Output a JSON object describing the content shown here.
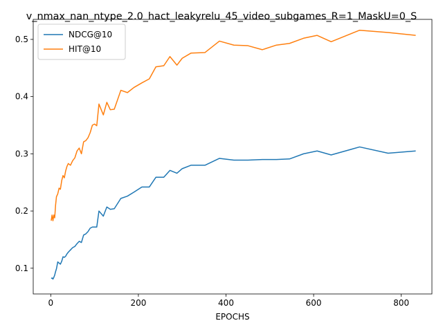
{
  "chart_data": {
    "type": "line",
    "title": "v_nmax_nan_ntype_2.0_hact_leakyrelu_45_video_subgames_R=1_MaskU=0_S",
    "xlabel": "EPOCHS",
    "ylabel": "",
    "xlim": [
      -40,
      870
    ],
    "ylim": [
      0.055,
      0.535
    ],
    "xticks": [
      0,
      200,
      400,
      600,
      800
    ],
    "yticks": [
      0.1,
      0.2,
      0.3,
      0.4,
      0.5
    ],
    "legend_position": "upper-left",
    "grid": false,
    "series": [
      {
        "name": "NDCG@10",
        "color": "#1f77b4",
        "x": [
          1,
          3,
          5,
          7,
          9,
          11,
          13,
          16,
          19,
          22,
          25,
          28,
          31,
          34,
          37,
          40,
          45,
          50,
          55,
          60,
          65,
          70,
          75,
          80,
          85,
          90,
          95,
          100,
          105,
          110,
          120,
          128,
          136,
          145,
          160,
          175,
          190,
          208,
          225,
          240,
          258,
          272,
          288,
          300,
          320,
          352,
          385,
          418,
          450,
          483,
          515,
          545,
          577,
          608,
          640,
          705,
          770,
          833
        ],
        "y": [
          0.082,
          0.083,
          0.081,
          0.084,
          0.088,
          0.094,
          0.099,
          0.111,
          0.109,
          0.107,
          0.112,
          0.12,
          0.119,
          0.121,
          0.125,
          0.128,
          0.132,
          0.136,
          0.138,
          0.143,
          0.147,
          0.145,
          0.158,
          0.16,
          0.164,
          0.17,
          0.172,
          0.172,
          0.172,
          0.2,
          0.191,
          0.207,
          0.203,
          0.204,
          0.222,
          0.226,
          0.233,
          0.242,
          0.242,
          0.259,
          0.259,
          0.271,
          0.266,
          0.274,
          0.28,
          0.28,
          0.292,
          0.289,
          0.289,
          0.29,
          0.29,
          0.291,
          0.3,
          0.305,
          0.298,
          0.312,
          0.301,
          0.305
        ]
      },
      {
        "name": "HIT@10",
        "color": "#ff7f0e",
        "x": [
          1,
          3,
          5,
          7,
          9,
          11,
          13,
          16,
          19,
          22,
          25,
          28,
          31,
          34,
          37,
          40,
          45,
          50,
          55,
          60,
          65,
          70,
          75,
          80,
          85,
          90,
          95,
          100,
          105,
          110,
          120,
          128,
          136,
          145,
          160,
          175,
          190,
          208,
          225,
          240,
          258,
          272,
          288,
          300,
          320,
          352,
          385,
          418,
          450,
          483,
          515,
          545,
          577,
          608,
          640,
          705,
          770,
          833
        ],
        "y": [
          0.183,
          0.193,
          0.183,
          0.193,
          0.188,
          0.21,
          0.225,
          0.23,
          0.24,
          0.238,
          0.253,
          0.262,
          0.258,
          0.27,
          0.278,
          0.283,
          0.28,
          0.288,
          0.293,
          0.305,
          0.31,
          0.3,
          0.321,
          0.323,
          0.328,
          0.337,
          0.35,
          0.352,
          0.349,
          0.387,
          0.368,
          0.39,
          0.377,
          0.378,
          0.411,
          0.407,
          0.416,
          0.424,
          0.431,
          0.452,
          0.454,
          0.47,
          0.455,
          0.467,
          0.476,
          0.477,
          0.497,
          0.49,
          0.489,
          0.482,
          0.49,
          0.493,
          0.502,
          0.507,
          0.496,
          0.516,
          0.512,
          0.507
        ]
      }
    ]
  }
}
